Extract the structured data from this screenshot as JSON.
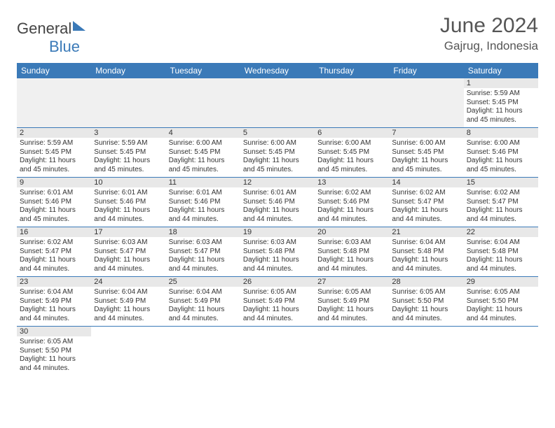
{
  "logo": {
    "part1": "General",
    "part2": "Blue"
  },
  "title": "June 2024",
  "location": "Gajrug, Indonesia",
  "days": [
    "Sunday",
    "Monday",
    "Tuesday",
    "Wednesday",
    "Thursday",
    "Friday",
    "Saturday"
  ],
  "weeks": [
    [
      null,
      null,
      null,
      null,
      null,
      null,
      {
        "n": "1",
        "sr": "5:59 AM",
        "ss": "5:45 PM",
        "dl": "11 hours and 45 minutes."
      }
    ],
    [
      {
        "n": "2",
        "sr": "5:59 AM",
        "ss": "5:45 PM",
        "dl": "11 hours and 45 minutes."
      },
      {
        "n": "3",
        "sr": "5:59 AM",
        "ss": "5:45 PM",
        "dl": "11 hours and 45 minutes."
      },
      {
        "n": "4",
        "sr": "6:00 AM",
        "ss": "5:45 PM",
        "dl": "11 hours and 45 minutes."
      },
      {
        "n": "5",
        "sr": "6:00 AM",
        "ss": "5:45 PM",
        "dl": "11 hours and 45 minutes."
      },
      {
        "n": "6",
        "sr": "6:00 AM",
        "ss": "5:45 PM",
        "dl": "11 hours and 45 minutes."
      },
      {
        "n": "7",
        "sr": "6:00 AM",
        "ss": "5:45 PM",
        "dl": "11 hours and 45 minutes."
      },
      {
        "n": "8",
        "sr": "6:00 AM",
        "ss": "5:46 PM",
        "dl": "11 hours and 45 minutes."
      }
    ],
    [
      {
        "n": "9",
        "sr": "6:01 AM",
        "ss": "5:46 PM",
        "dl": "11 hours and 45 minutes."
      },
      {
        "n": "10",
        "sr": "6:01 AM",
        "ss": "5:46 PM",
        "dl": "11 hours and 44 minutes."
      },
      {
        "n": "11",
        "sr": "6:01 AM",
        "ss": "5:46 PM",
        "dl": "11 hours and 44 minutes."
      },
      {
        "n": "12",
        "sr": "6:01 AM",
        "ss": "5:46 PM",
        "dl": "11 hours and 44 minutes."
      },
      {
        "n": "13",
        "sr": "6:02 AM",
        "ss": "5:46 PM",
        "dl": "11 hours and 44 minutes."
      },
      {
        "n": "14",
        "sr": "6:02 AM",
        "ss": "5:47 PM",
        "dl": "11 hours and 44 minutes."
      },
      {
        "n": "15",
        "sr": "6:02 AM",
        "ss": "5:47 PM",
        "dl": "11 hours and 44 minutes."
      }
    ],
    [
      {
        "n": "16",
        "sr": "6:02 AM",
        "ss": "5:47 PM",
        "dl": "11 hours and 44 minutes."
      },
      {
        "n": "17",
        "sr": "6:03 AM",
        "ss": "5:47 PM",
        "dl": "11 hours and 44 minutes."
      },
      {
        "n": "18",
        "sr": "6:03 AM",
        "ss": "5:47 PM",
        "dl": "11 hours and 44 minutes."
      },
      {
        "n": "19",
        "sr": "6:03 AM",
        "ss": "5:48 PM",
        "dl": "11 hours and 44 minutes."
      },
      {
        "n": "20",
        "sr": "6:03 AM",
        "ss": "5:48 PM",
        "dl": "11 hours and 44 minutes."
      },
      {
        "n": "21",
        "sr": "6:04 AM",
        "ss": "5:48 PM",
        "dl": "11 hours and 44 minutes."
      },
      {
        "n": "22",
        "sr": "6:04 AM",
        "ss": "5:48 PM",
        "dl": "11 hours and 44 minutes."
      }
    ],
    [
      {
        "n": "23",
        "sr": "6:04 AM",
        "ss": "5:49 PM",
        "dl": "11 hours and 44 minutes."
      },
      {
        "n": "24",
        "sr": "6:04 AM",
        "ss": "5:49 PM",
        "dl": "11 hours and 44 minutes."
      },
      {
        "n": "25",
        "sr": "6:04 AM",
        "ss": "5:49 PM",
        "dl": "11 hours and 44 minutes."
      },
      {
        "n": "26",
        "sr": "6:05 AM",
        "ss": "5:49 PM",
        "dl": "11 hours and 44 minutes."
      },
      {
        "n": "27",
        "sr": "6:05 AM",
        "ss": "5:49 PM",
        "dl": "11 hours and 44 minutes."
      },
      {
        "n": "28",
        "sr": "6:05 AM",
        "ss": "5:50 PM",
        "dl": "11 hours and 44 minutes."
      },
      {
        "n": "29",
        "sr": "6:05 AM",
        "ss": "5:50 PM",
        "dl": "11 hours and 44 minutes."
      }
    ],
    [
      {
        "n": "30",
        "sr": "6:05 AM",
        "ss": "5:50 PM",
        "dl": "11 hours and 44 minutes."
      },
      null,
      null,
      null,
      null,
      null,
      null
    ]
  ],
  "labels": {
    "sunrise": "Sunrise: ",
    "sunset": "Sunset: ",
    "daylight": "Daylight: "
  }
}
